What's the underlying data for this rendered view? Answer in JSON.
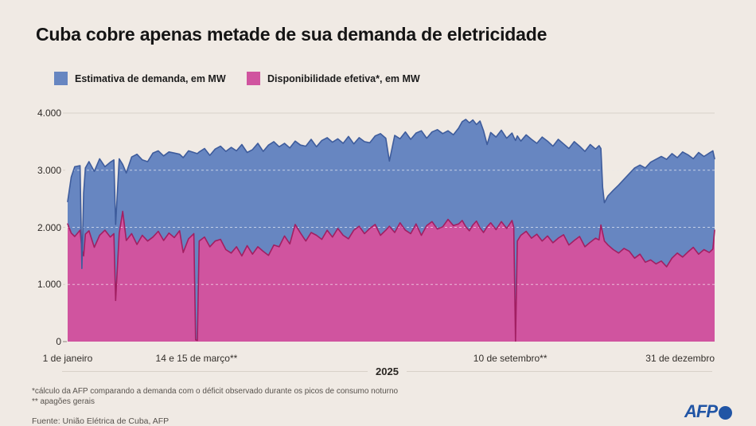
{
  "title": "Cuba cobre apenas metade de sua demanda de eletricidade",
  "footnotes": [
    "*cálculo da AFP comparando a demanda com o déficit observado durante os picos de consumo noturno",
    "** apagões gerais"
  ],
  "source": "Fuente: União Elétrica de Cuba, AFP",
  "logo": {
    "text": "AFP"
  },
  "colors": {
    "background": "#f0eae4",
    "grid_under": "#d9d2ca",
    "grid_over_white": "#ffffff",
    "afp_blue": "#2155a5"
  },
  "chart_data": {
    "type": "area",
    "title": "Cuba cobre apenas metade de sua demanda de eletricidade",
    "xlabel": "2025 (1 de janeiro a 31 de dezembro)",
    "ylabel": "MW",
    "ylim": [
      0,
      4000
    ],
    "grid": "dashed horizontal at 1000/2000/3000, solid at 4000",
    "legend_position": "top-left",
    "year_label": "2025",
    "yticks": [
      {
        "label": "4.000",
        "value": 4000
      },
      {
        "label": "3.000",
        "value": 3000
      },
      {
        "label": "2.000",
        "value": 2000
      },
      {
        "label": "1.000",
        "value": 1000
      },
      {
        "label": "0",
        "value": 0
      }
    ],
    "xticks": [
      {
        "label": "1 de janeiro",
        "day": 0,
        "align": "center"
      },
      {
        "label": "14 e 15 de março**",
        "day": 72.5,
        "align": "center"
      },
      {
        "label": "10 de setembro**",
        "day": 249,
        "align": "center"
      },
      {
        "label": "31 de dezembro",
        "day": 364,
        "align": "right"
      }
    ],
    "x_unit": "dia do ano de 2025",
    "x": [
      0,
      2,
      4,
      7,
      8,
      9,
      10,
      12,
      15,
      18,
      21,
      24,
      26,
      27,
      29,
      31,
      33,
      36,
      39,
      42,
      45,
      48,
      51,
      54,
      57,
      60,
      63,
      65,
      68,
      71,
      72,
      73,
      74,
      77,
      80,
      83,
      86,
      89,
      92,
      95,
      98,
      101,
      104,
      107,
      110,
      113,
      116,
      119,
      122,
      125,
      128,
      131,
      134,
      137,
      140,
      143,
      146,
      149,
      152,
      155,
      158,
      161,
      164,
      167,
      170,
      173,
      176,
      179,
      181,
      184,
      187,
      190,
      193,
      196,
      199,
      202,
      205,
      208,
      211,
      214,
      217,
      220,
      222,
      224,
      226,
      228,
      230,
      232,
      234,
      236,
      238,
      241,
      244,
      247,
      250,
      251,
      252,
      253,
      255,
      258,
      261,
      264,
      267,
      270,
      273,
      276,
      279,
      282,
      285,
      288,
      291,
      294,
      297,
      299,
      300,
      301,
      302,
      304,
      307,
      310,
      313,
      316,
      319,
      322,
      325,
      328,
      331,
      334,
      337,
      340,
      343,
      346,
      349,
      352,
      355,
      358,
      361,
      363,
      364
    ],
    "series": [
      {
        "name": "Estimativa de demanda, em MW",
        "color": "#6786c1",
        "line_color": "#3e5c9c",
        "values": [
          2450,
          2880,
          3060,
          3080,
          1280,
          2600,
          3040,
          3150,
          2980,
          3200,
          3060,
          3140,
          3180,
          2050,
          3200,
          3100,
          2950,
          3230,
          3280,
          3180,
          3150,
          3300,
          3340,
          3250,
          3320,
          3300,
          3280,
          3220,
          3340,
          3310,
          3300,
          3290,
          3320,
          3380,
          3260,
          3370,
          3420,
          3330,
          3400,
          3340,
          3450,
          3310,
          3360,
          3470,
          3330,
          3440,
          3500,
          3410,
          3470,
          3390,
          3510,
          3440,
          3420,
          3540,
          3410,
          3520,
          3570,
          3490,
          3550,
          3470,
          3590,
          3460,
          3570,
          3500,
          3480,
          3600,
          3640,
          3560,
          3160,
          3610,
          3550,
          3670,
          3540,
          3650,
          3690,
          3560,
          3670,
          3710,
          3640,
          3690,
          3620,
          3740,
          3850,
          3890,
          3830,
          3880,
          3800,
          3860,
          3690,
          3450,
          3660,
          3580,
          3700,
          3560,
          3650,
          3580,
          3520,
          3600,
          3510,
          3620,
          3540,
          3470,
          3580,
          3510,
          3420,
          3540,
          3460,
          3380,
          3500,
          3420,
          3330,
          3450,
          3370,
          3430,
          3380,
          2700,
          2430,
          2550,
          2650,
          2740,
          2840,
          2940,
          3040,
          3090,
          3040,
          3140,
          3190,
          3240,
          3190,
          3290,
          3220,
          3320,
          3270,
          3200,
          3310,
          3240,
          3300,
          3340,
          3200
        ]
      },
      {
        "name": "Disponibilidade efetiva*, em MW",
        "color": "#d0549f",
        "line_color": "#a21f62",
        "values": [
          2060,
          1900,
          1840,
          1950,
          1620,
          1500,
          1880,
          1940,
          1650,
          1860,
          1950,
          1830,
          1890,
          720,
          1900,
          2280,
          1770,
          1890,
          1700,
          1860,
          1760,
          1830,
          1930,
          1770,
          1900,
          1820,
          1940,
          1560,
          1800,
          1890,
          30,
          20,
          1760,
          1830,
          1660,
          1760,
          1790,
          1610,
          1550,
          1660,
          1500,
          1680,
          1530,
          1660,
          1580,
          1510,
          1690,
          1660,
          1850,
          1710,
          2050,
          1900,
          1760,
          1910,
          1860,
          1790,
          1950,
          1830,
          1980,
          1860,
          1800,
          1950,
          2020,
          1890,
          1980,
          2050,
          1860,
          1950,
          2020,
          1910,
          2080,
          1950,
          1890,
          2060,
          1860,
          2030,
          2100,
          1970,
          2010,
          2140,
          2030,
          2060,
          2120,
          2010,
          1940,
          2040,
          2110,
          1990,
          1910,
          2010,
          2080,
          1960,
          2100,
          1980,
          2120,
          2000,
          10,
          1760,
          1860,
          1930,
          1810,
          1880,
          1760,
          1850,
          1730,
          1810,
          1870,
          1690,
          1770,
          1840,
          1660,
          1740,
          1810,
          1780,
          2040,
          1900,
          1760,
          1690,
          1610,
          1550,
          1630,
          1580,
          1460,
          1530,
          1390,
          1430,
          1360,
          1410,
          1310,
          1460,
          1550,
          1480,
          1570,
          1650,
          1530,
          1610,
          1560,
          1620,
          1950
        ]
      }
    ]
  }
}
